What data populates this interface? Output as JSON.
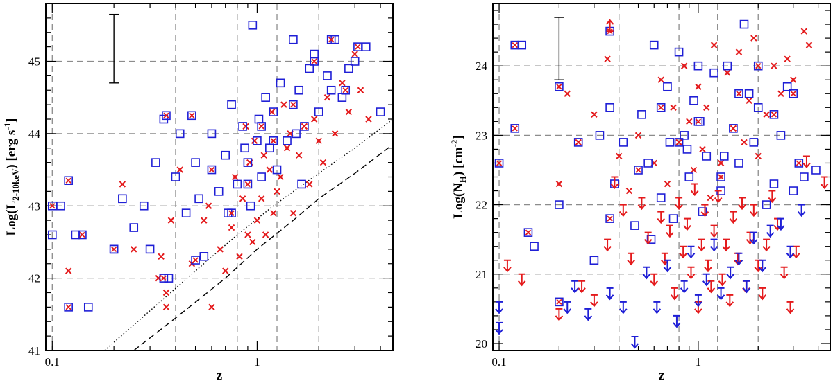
{
  "chart_data": [
    {
      "type": "scatter",
      "panel": "left",
      "xscale": "log",
      "xlim": [
        0.093,
        4.6
      ],
      "ylim": [
        41.0,
        45.8
      ],
      "xlabel": "z",
      "ylabel_parts": [
        "Log(L",
        "2-10keV",
        ") [erg s",
        "-1",
        "]"
      ],
      "xticks": [
        {
          "value": 0.1,
          "label": "0.1"
        },
        {
          "value": 1,
          "label": "1"
        }
      ],
      "yticks": [
        {
          "value": 41,
          "label": "41"
        },
        {
          "value": 42,
          "label": "42"
        },
        {
          "value": 43,
          "label": "43"
        },
        {
          "value": 44,
          "label": "44"
        },
        {
          "value": 45,
          "label": "45"
        }
      ],
      "grid_x": [
        0.1,
        0.4,
        0.8,
        1.25,
        2.0
      ],
      "grid_y": [
        42,
        43,
        44,
        45
      ],
      "error_bar": {
        "x": 0.2,
        "y_low": 44.7,
        "y_high": 45.65
      },
      "limit_curves": [
        {
          "name": "dotted",
          "style": "dotted",
          "x": [
            0.18,
            0.3,
            0.5,
            0.8,
            1.2,
            2.0,
            3.0,
            4.6
          ],
          "y": [
            41.0,
            41.55,
            42.1,
            42.6,
            43.0,
            43.45,
            43.8,
            44.2
          ]
        },
        {
          "name": "dashed",
          "style": "dashed",
          "x": [
            0.25,
            0.4,
            0.7,
            1.0,
            1.5,
            2.0,
            3.0,
            4.6
          ],
          "y": [
            41.0,
            41.45,
            42.0,
            42.4,
            42.8,
            43.1,
            43.45,
            43.85
          ]
        }
      ],
      "series": [
        {
          "name": "red crosses",
          "marker": "x",
          "color": "#e41a1c",
          "x": [
            0.12,
            0.22,
            0.25,
            0.33,
            0.36,
            0.38,
            0.42,
            0.48,
            0.55,
            0.6,
            0.7,
            0.75,
            0.82,
            0.85,
            0.9,
            0.92,
            0.95,
            1.0,
            1.05,
            1.1,
            1.15,
            1.2,
            1.3,
            1.4,
            1.5,
            1.6,
            1.7,
            1.8,
            1.9,
            2.0,
            2.2,
            2.4,
            2.6,
            2.8,
            3.0,
            3.2,
            3.5,
            0.97,
            1.25,
            0.88,
            1.08,
            1.35,
            0.78,
            1.45,
            2.1,
            0.66,
            0.58,
            1.18,
            0.36,
            0.34
          ],
          "y": [
            42.1,
            43.3,
            42.4,
            42.0,
            41.6,
            42.8,
            43.5,
            42.2,
            42.8,
            41.6,
            42.1,
            42.7,
            42.3,
            43.1,
            42.6,
            43.6,
            42.5,
            42.8,
            43.1,
            42.6,
            43.5,
            42.9,
            43.4,
            43.8,
            42.9,
            43.7,
            44.1,
            43.3,
            44.2,
            43.9,
            44.5,
            44.0,
            44.7,
            44.3,
            45.1,
            44.6,
            44.2,
            43.9,
            43.2,
            44.1,
            43.7,
            44.4,
            43.4,
            44.0,
            43.6,
            42.4,
            43.0,
            44.3,
            41.8,
            42.3
          ]
        },
        {
          "name": "blue squares",
          "marker": "square",
          "color": "#1f1fd6",
          "x": [
            0.1,
            0.11,
            0.13,
            0.15,
            0.2,
            0.22,
            0.25,
            0.28,
            0.3,
            0.32,
            0.35,
            0.37,
            0.4,
            0.45,
            0.5,
            0.55,
            0.6,
            0.65,
            0.7,
            0.75,
            0.8,
            0.85,
            0.9,
            0.95,
            1.0,
            1.05,
            1.1,
            1.15,
            1.2,
            1.3,
            1.4,
            1.5,
            1.6,
            1.7,
            1.8,
            1.9,
            2.0,
            2.2,
            2.4,
            2.6,
            2.8,
            3.0,
            3.4,
            4.0,
            0.93,
            1.55,
            2.3,
            0.72,
            0.87,
            1.02,
            1.25,
            1.65,
            0.42,
            0.52
          ],
          "y": [
            42.6,
            43.0,
            42.6,
            41.6,
            42.4,
            43.1,
            42.7,
            43.0,
            42.4,
            43.6,
            44.2,
            42.0,
            43.4,
            42.9,
            43.6,
            42.3,
            44.0,
            43.2,
            43.7,
            44.4,
            43.3,
            44.1,
            43.6,
            45.5,
            43.9,
            43.4,
            44.5,
            43.8,
            44.3,
            44.7,
            43.9,
            45.3,
            44.6,
            44.1,
            44.9,
            45.1,
            44.3,
            44.8,
            45.3,
            44.5,
            44.9,
            45.0,
            45.2,
            44.3,
            43.0,
            44.0,
            44.6,
            42.9,
            43.8,
            44.2,
            43.5,
            43.3,
            44.0,
            43.1
          ]
        },
        {
          "name": "boxed crosses",
          "marker": "square-x",
          "color": "#1f1fd6",
          "x": [
            0.1,
            0.12,
            0.12,
            0.14,
            0.2,
            0.36,
            0.35,
            0.48,
            0.5,
            0.6,
            0.75,
            0.9,
            1.05,
            1.2,
            1.5,
            1.9,
            2.3,
            2.7,
            3.1
          ],
          "y": [
            43.0,
            43.35,
            41.6,
            42.6,
            42.4,
            44.25,
            42.0,
            44.25,
            42.25,
            43.5,
            42.9,
            43.3,
            44.1,
            43.9,
            44.4,
            45.0,
            45.3,
            44.6,
            45.2
          ]
        }
      ]
    },
    {
      "type": "scatter",
      "panel": "right",
      "xscale": "log",
      "xlim": [
        0.093,
        4.6
      ],
      "ylim": [
        19.9,
        24.9
      ],
      "xlabel": "z",
      "ylabel_parts": [
        "Log(N",
        "H",
        ") [cm",
        "-2",
        "]"
      ],
      "xticks": [
        {
          "value": 0.1,
          "label": "0.1"
        },
        {
          "value": 1,
          "label": "1"
        }
      ],
      "yticks": [
        {
          "value": 20,
          "label": "20"
        },
        {
          "value": 21,
          "label": "21"
        },
        {
          "value": 22,
          "label": "22"
        },
        {
          "value": 23,
          "label": "23"
        },
        {
          "value": 24,
          "label": "24"
        }
      ],
      "grid_x": [
        0.1,
        0.4,
        0.8,
        1.25,
        2.0
      ],
      "grid_y": [
        21,
        22,
        23,
        24
      ],
      "error_bar": {
        "x": 0.2,
        "y_low": 23.8,
        "y_high": 24.7
      },
      "series": [
        {
          "name": "red crosses",
          "marker": "x",
          "color": "#e41a1c",
          "x": [
            0.2,
            0.22,
            0.25,
            0.3,
            0.35,
            0.4,
            0.5,
            0.6,
            0.65,
            0.7,
            0.75,
            0.8,
            0.85,
            0.9,
            0.95,
            1.0,
            1.05,
            1.1,
            1.2,
            1.3,
            1.4,
            1.5,
            1.6,
            1.7,
            1.8,
            1.9,
            2.0,
            2.2,
            2.4,
            2.6,
            2.8,
            3.0,
            3.4,
            3.6,
            0.45,
            1.15
          ],
          "y": [
            22.3,
            23.6,
            22.9,
            23.3,
            24.1,
            22.7,
            23.0,
            22.6,
            23.8,
            22.3,
            23.4,
            22.9,
            24.0,
            23.2,
            22.5,
            23.7,
            22.8,
            23.4,
            24.3,
            22.6,
            23.9,
            23.1,
            24.2,
            22.9,
            23.5,
            24.4,
            22.7,
            23.3,
            24.0,
            23.6,
            24.1,
            23.8,
            24.5,
            24.3,
            22.2,
            22.1
          ]
        },
        {
          "name": "blue squares",
          "marker": "square",
          "color": "#1f1fd6",
          "x": [
            0.13,
            0.15,
            0.2,
            0.25,
            0.3,
            0.32,
            0.36,
            0.38,
            0.42,
            0.48,
            0.52,
            0.56,
            0.6,
            0.65,
            0.7,
            0.75,
            0.8,
            0.85,
            0.9,
            0.95,
            1.0,
            1.05,
            1.1,
            1.2,
            1.3,
            1.4,
            1.5,
            1.6,
            1.7,
            1.8,
            1.9,
            2.0,
            2.2,
            2.4,
            2.6,
            2.8,
            3.0,
            3.4,
            3.9,
            0.72,
            1.02,
            1.35,
            0.58,
            0.88
          ],
          "y": [
            24.3,
            21.4,
            22.0,
            22.9,
            21.2,
            23.0,
            23.4,
            22.3,
            22.9,
            21.7,
            23.3,
            22.6,
            24.3,
            22.1,
            23.7,
            21.8,
            24.2,
            23.0,
            22.4,
            23.5,
            24.0,
            21.9,
            22.7,
            23.9,
            22.2,
            24.0,
            23.1,
            22.6,
            24.6,
            23.6,
            22.9,
            23.4,
            22.0,
            22.3,
            23.0,
            23.7,
            22.2,
            22.4,
            22.5,
            22.9,
            23.2,
            22.7,
            21.5,
            22.8
          ]
        },
        {
          "name": "boxed crosses",
          "marker": "square-x",
          "color": "#1f1fd6",
          "x": [
            0.1,
            0.12,
            0.12,
            0.14,
            0.2,
            0.2,
            0.36,
            0.36,
            0.5,
            0.65,
            0.8,
            1.0,
            1.3,
            1.6,
            2.0,
            2.4,
            3.0,
            3.2
          ],
          "y": [
            22.6,
            24.3,
            23.1,
            21.6,
            23.7,
            20.6,
            24.5,
            21.8,
            22.5,
            23.4,
            22.9,
            23.2,
            22.4,
            23.6,
            24.0,
            23.3,
            23.6,
            22.6
          ]
        },
        {
          "name": "red upper limits",
          "marker": "down-arrow",
          "color": "#e41a1c",
          "x": [
            0.11,
            0.13,
            0.2,
            0.26,
            0.3,
            0.35,
            0.38,
            0.42,
            0.46,
            0.52,
            0.56,
            0.6,
            0.65,
            0.68,
            0.72,
            0.76,
            0.8,
            0.84,
            0.88,
            0.92,
            0.96,
            1.0,
            1.04,
            1.08,
            1.12,
            1.16,
            1.2,
            1.26,
            1.32,
            1.38,
            1.44,
            1.5,
            1.58,
            1.66,
            1.74,
            1.82,
            1.9,
            2.0,
            2.1,
            2.2,
            2.35,
            2.5,
            2.7,
            2.9,
            3.1,
            3.5,
            4.3
          ],
          "y": [
            21.2,
            21.0,
            20.5,
            20.9,
            20.7,
            21.5,
            22.4,
            22.0,
            21.3,
            22.1,
            21.6,
            21.0,
            21.9,
            21.3,
            21.7,
            20.8,
            22.1,
            21.4,
            21.8,
            21.1,
            22.3,
            20.6,
            21.5,
            22.0,
            21.2,
            20.9,
            21.7,
            22.2,
            21.0,
            21.5,
            20.7,
            21.9,
            21.3,
            22.1,
            20.9,
            21.6,
            22.0,
            21.2,
            20.8,
            21.5,
            22.2,
            21.8,
            21.1,
            20.6,
            21.4,
            22.7,
            22.4
          ]
        },
        {
          "name": "red lower limits",
          "marker": "up-arrow",
          "color": "#e41a1c",
          "x": [
            0.36
          ],
          "y": [
            24.5
          ]
        },
        {
          "name": "blue upper limits",
          "marker": "down-arrow",
          "color": "#1f1fd6",
          "x": [
            0.1,
            0.1,
            0.17,
            0.22,
            0.24,
            0.28,
            0.36,
            0.42,
            0.48,
            0.55,
            0.62,
            0.7,
            0.78,
            0.85,
            0.92,
            1.0,
            1.1,
            1.2,
            1.3,
            1.45,
            1.6,
            1.75,
            1.9,
            2.1,
            2.3,
            2.6,
            2.9,
            3.3
          ],
          "y": [
            20.6,
            20.3,
            19.9,
            20.6,
            20.9,
            20.5,
            20.8,
            20.6,
            20.1,
            21.1,
            20.6,
            21.2,
            20.4,
            20.9,
            21.4,
            20.7,
            21.0,
            21.5,
            20.8,
            21.1,
            21.3,
            20.9,
            21.6,
            21.2,
            21.7,
            21.8,
            21.4,
            22.0
          ]
        }
      ]
    }
  ]
}
